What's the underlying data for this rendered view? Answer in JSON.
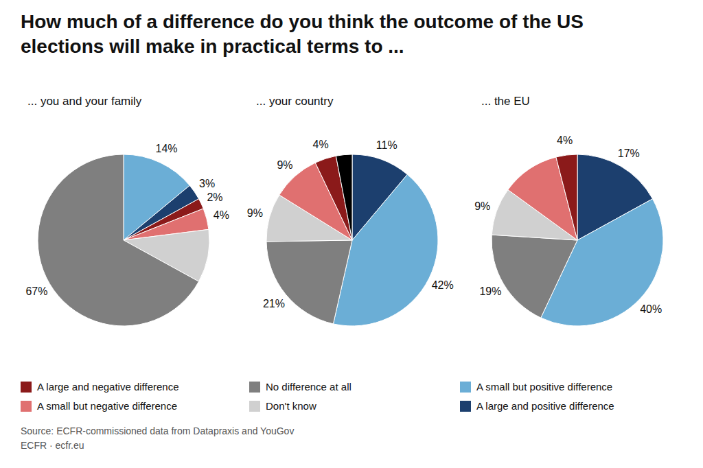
{
  "title": "How much of a difference do you think the outcome of the US\nelections will make in practical terms to ...",
  "source": "Source: ECFR-commissioned data from Datapraxis and YouGov\nECFR · ecfr.eu",
  "legend_entries": [
    {
      "name": "A large and negative difference",
      "color": "#8b1a1a"
    },
    {
      "name": "A small but negative difference",
      "color": "#e07070"
    },
    {
      "name": "No difference at all",
      "color": "#7f7f7f"
    },
    {
      "name": "Don't know",
      "color": "#d0d0d0"
    },
    {
      "name": "A small but positive difference",
      "color": "#6baed6"
    },
    {
      "name": "A large and positive difference",
      "color": "#1c3f6e"
    }
  ],
  "chart_data": [
    {
      "type": "pie",
      "subtitle": "... you and your family",
      "values": [
        14,
        3,
        2,
        4,
        10,
        67
      ],
      "value_labels": [
        "14%",
        "3%",
        "2%",
        "4%",
        null,
        "67%"
      ],
      "colors": [
        "#6baed6",
        "#1c3f6e",
        "#8b1a1a",
        "#e07070",
        "#d0d0d0",
        "#7f7f7f"
      ],
      "data_labels": true
    },
    {
      "type": "pie",
      "subtitle": "... your country",
      "values": [
        11,
        42,
        21,
        9,
        9,
        4,
        3
      ],
      "value_labels": [
        "11%",
        "42%",
        "21%",
        "9%",
        "9%",
        "4%",
        null
      ],
      "colors": [
        "#1c3f6e",
        "#6baed6",
        "#7f7f7f",
        "#d0d0d0",
        "#e07070",
        "#8b1a1a",
        "#000000"
      ],
      "data_labels": true
    },
    {
      "type": "pie",
      "subtitle": "... the EU",
      "values": [
        17,
        40,
        19,
        9,
        11,
        4
      ],
      "value_labels": [
        "17%",
        "40%",
        "19%",
        "9%",
        null,
        "4%"
      ],
      "colors": [
        "#1c3f6e",
        "#6baed6",
        "#7f7f7f",
        "#d0d0d0",
        "#e07070",
        "#8b1a1a"
      ],
      "data_labels": true
    }
  ]
}
